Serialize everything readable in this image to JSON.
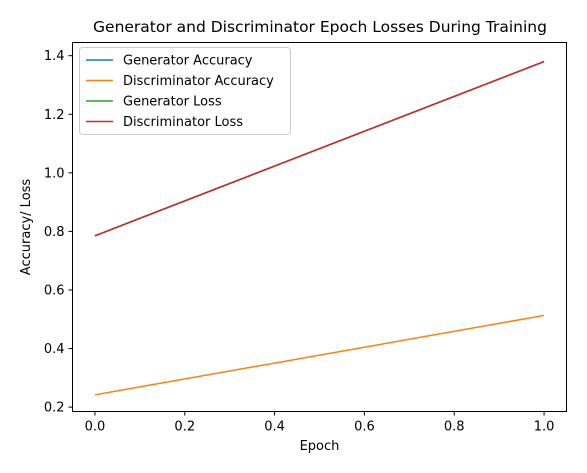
{
  "chart_data": {
    "type": "line",
    "title": "Generator and Discriminator Epoch Losses During Training",
    "xlabel": "Epoch",
    "ylabel": "Accuracy/ Loss",
    "x": [
      0.0,
      1.0
    ],
    "xlim": [
      -0.05,
      1.05
    ],
    "ylim": [
      0.185,
      1.445
    ],
    "xticks": [
      "0.0",
      "0.2",
      "0.4",
      "0.6",
      "0.8",
      "1.0"
    ],
    "xtick_values": [
      0.0,
      0.2,
      0.4,
      0.6,
      0.8,
      1.0
    ],
    "yticks": [
      "0.2",
      "0.4",
      "0.6",
      "0.8",
      "1.0",
      "1.2",
      "1.4"
    ],
    "ytick_values": [
      0.2,
      0.4,
      0.6,
      0.8,
      1.0,
      1.2,
      1.4
    ],
    "grid": false,
    "legend_position": "top-left",
    "series": [
      {
        "name": "Generator Accuracy",
        "color": "#1f77b4",
        "values": [
          0.785,
          1.38
        ]
      },
      {
        "name": "Discriminator Accuracy",
        "color": "#ff7f0e",
        "values": [
          0.242,
          0.513
        ]
      },
      {
        "name": "Generator Loss",
        "color": "#2ca02c",
        "values": [
          0.785,
          1.38
        ]
      },
      {
        "name": "Discriminator Loss",
        "color": "#d62728",
        "values": [
          0.785,
          1.38
        ]
      }
    ]
  }
}
